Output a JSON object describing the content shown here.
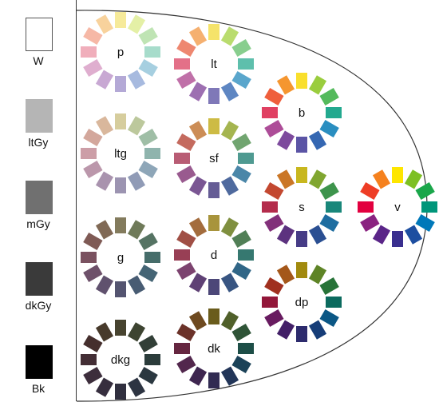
{
  "grays": [
    {
      "label": "W",
      "color": "#ffffff"
    },
    {
      "label": "ltGy",
      "color": "#b5b5b5"
    },
    {
      "label": "mGy",
      "color": "#707070"
    },
    {
      "label": "dkGy",
      "color": "#3a3a3a"
    },
    {
      "label": "Bk",
      "color": "#000000"
    }
  ],
  "tones": [
    {
      "id": "p",
      "label": "p",
      "colors": [
        "#f6ea9a",
        "#e4f0a6",
        "#bfe4b4",
        "#a7dccb",
        "#a6cfe0",
        "#a7badf",
        "#b4a9d6",
        "#c8a8d3",
        "#dfaecf",
        "#f0aebb",
        "#f6b8a6",
        "#f8d29c"
      ]
    },
    {
      "id": "lt",
      "label": "lt",
      "colors": [
        "#f5e36a",
        "#b9dc6e",
        "#88ce8e",
        "#5ebfac",
        "#5aa6cc",
        "#5e86c2",
        "#7f78b8",
        "#9d6fb1",
        "#c070a8",
        "#e37088",
        "#ee8770",
        "#f5b070"
      ]
    },
    {
      "id": "b",
      "label": "b",
      "colors": [
        "#f9df2c",
        "#9acd3e",
        "#54ba5c",
        "#23a98f",
        "#2a8ec0",
        "#3567b2",
        "#5b54a5",
        "#7d4a9d",
        "#ad4d98",
        "#e04062",
        "#ef5f3c",
        "#f5962f"
      ]
    },
    {
      "id": "v",
      "label": "v",
      "colors": [
        "#fee600",
        "#7dc023",
        "#1aa64a",
        "#00967a",
        "#0078b9",
        "#1d4ea0",
        "#3a2f8f",
        "#5a2588",
        "#8a2280",
        "#e2003f",
        "#ee3d25",
        "#f5811e"
      ]
    },
    {
      "id": "ltg",
      "label": "ltg",
      "colors": [
        "#d6cd9d",
        "#bcc89c",
        "#9fbea6",
        "#8fb4ad",
        "#8ea6b8",
        "#909bb6",
        "#9c94b1",
        "#a993ae",
        "#bb97ab",
        "#cc9ea7",
        "#d3a79c",
        "#d9b79c"
      ]
    },
    {
      "id": "sf",
      "label": "sf",
      "colors": [
        "#cdbb44",
        "#a5b550",
        "#71a570",
        "#4f9a91",
        "#4a86a8",
        "#4f6a9e",
        "#655c95",
        "#7a5693",
        "#995a8f",
        "#b85c74",
        "#c46a5e",
        "#cc8d56"
      ]
    },
    {
      "id": "s",
      "label": "s",
      "colors": [
        "#c8b71e",
        "#80a630",
        "#3d944c",
        "#19877a",
        "#1e6da0",
        "#2a4f92",
        "#463c86",
        "#5c327f",
        "#82307a",
        "#b42c4c",
        "#c34830",
        "#ca7626"
      ]
    },
    {
      "id": "g",
      "label": "g",
      "colors": [
        "#837b5d",
        "#6f7a59",
        "#557363",
        "#466d6a",
        "#456575",
        "#485c73",
        "#545470",
        "#60516e",
        "#6e516a",
        "#7a5260",
        "#7f5a55",
        "#806955"
      ]
    },
    {
      "id": "d",
      "label": "d",
      "colors": [
        "#a8943c",
        "#7f8f3f",
        "#517f56",
        "#367870",
        "#306687",
        "#385582",
        "#4c4778",
        "#5f4175",
        "#7c436f",
        "#983f55",
        "#a04f45",
        "#a36c3d"
      ]
    },
    {
      "id": "dp",
      "label": "dp",
      "colors": [
        "#a18a0e",
        "#5e8426",
        "#277338",
        "#0b6a5e",
        "#0b5785",
        "#163d78",
        "#2d2b6d",
        "#421f67",
        "#681b60",
        "#93173a",
        "#a0301f",
        "#a4571a"
      ]
    },
    {
      "id": "dkg",
      "label": "dkg",
      "colors": [
        "#47432f",
        "#3d4431",
        "#323f37",
        "#2b3c3b",
        "#2b3840",
        "#2d3442",
        "#302f3f",
        "#362e3e",
        "#3d2e3c",
        "#432e35",
        "#452f2d",
        "#473a2b"
      ]
    },
    {
      "id": "dk",
      "label": "dk",
      "colors": [
        "#6a5c1c",
        "#50602a",
        "#2f5437",
        "#1d4e47",
        "#1b4258",
        "#223558",
        "#312b52",
        "#3e2650",
        "#52274d",
        "#652640",
        "#6b3229",
        "#6e4a20"
      ]
    }
  ]
}
